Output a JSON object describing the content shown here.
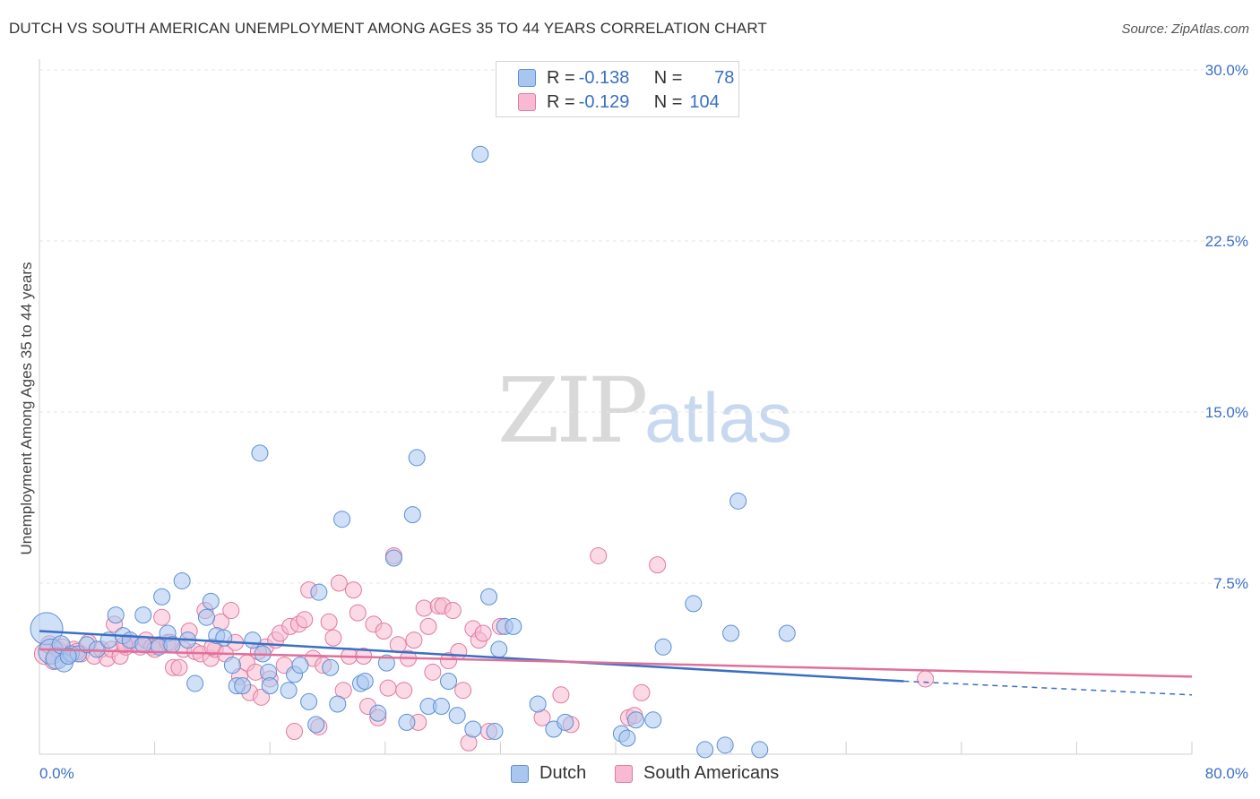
{
  "header": {
    "title": "DUTCH VS SOUTH AMERICAN UNEMPLOYMENT AMONG AGES 35 TO 44 YEARS CORRELATION CHART",
    "source": "Source: ZipAtlas.com"
  },
  "watermark": {
    "zip": "ZIP",
    "atlas": "atlas"
  },
  "legend": {
    "rows": [
      {
        "r_label": "R = ",
        "r_value": "-0.138",
        "n_label": "N = ",
        "n_value": "78",
        "color": "#a9c6ee",
        "stroke": "#5b8fd6"
      },
      {
        "r_label": "R = ",
        "r_value": "-0.129",
        "n_label": "N = ",
        "n_value": "104",
        "color": "#f7bad0",
        "stroke": "#e07aa0"
      }
    ]
  },
  "bottom_legend": {
    "dutch": "Dutch",
    "south_americans": "South Americans"
  },
  "chart_data": {
    "type": "scatter",
    "title": "DUTCH VS SOUTH AMERICAN UNEMPLOYMENT AMONG AGES 35 TO 44 YEARS CORRELATION CHART",
    "xlabel": "",
    "ylabel": "Unemployment Among Ages 35 to 44 years",
    "xlim": [
      0,
      80
    ],
    "ylim": [
      0,
      30
    ],
    "x_tick_labels": [
      "0.0%",
      "80.0%"
    ],
    "y_ticks": [
      7.5,
      15.0,
      22.5,
      30.0
    ],
    "y_tick_labels": [
      "7.5%",
      "15.0%",
      "22.5%",
      "30.0%"
    ],
    "grid": true,
    "legend_position": "top-center",
    "series": [
      {
        "name": "Dutch",
        "color": "#a9c6ee",
        "stroke": "#5b8fd6",
        "trend": {
          "x": [
            0,
            60
          ],
          "y": [
            5.4,
            3.2
          ],
          "dashed_to": [
            80,
            2.6
          ],
          "color": "#3a6fc4"
        },
        "points": [
          [
            0.5,
            5.5,
            18
          ],
          [
            0.8,
            4.5,
            14
          ],
          [
            1.2,
            4.2,
            12
          ],
          [
            1.5,
            4.8,
            10
          ],
          [
            1.7,
            4.0,
            10
          ],
          [
            2.2,
            4.4,
            9
          ],
          [
            2.7,
            4.4,
            9
          ],
          [
            3.3,
            4.8,
            9
          ],
          [
            4.0,
            4.6,
            9
          ],
          [
            4.8,
            5.0,
            9
          ],
          [
            5.3,
            6.1,
            9
          ],
          [
            5.8,
            5.2,
            9
          ],
          [
            6.3,
            5.0,
            9
          ],
          [
            7.2,
            4.8,
            9
          ],
          [
            7.2,
            6.1,
            9
          ],
          [
            8.3,
            4.7,
            9
          ],
          [
            8.5,
            6.9,
            9
          ],
          [
            8.9,
            5.3,
            9
          ],
          [
            9.2,
            4.8,
            9
          ],
          [
            9.9,
            7.6,
            9
          ],
          [
            10.3,
            5.0,
            9
          ],
          [
            10.8,
            3.1,
            9
          ],
          [
            11.6,
            6.0,
            9
          ],
          [
            11.9,
            6.7,
            9
          ],
          [
            12.3,
            5.2,
            9
          ],
          [
            12.8,
            5.1,
            9
          ],
          [
            13.4,
            3.9,
            9
          ],
          [
            13.7,
            3.0,
            9
          ],
          [
            14.1,
            3.0,
            9
          ],
          [
            14.8,
            5.0,
            9
          ],
          [
            15.3,
            13.2,
            9
          ],
          [
            15.5,
            4.4,
            9
          ],
          [
            15.9,
            3.6,
            9
          ],
          [
            16.0,
            3.0,
            9
          ],
          [
            17.3,
            2.8,
            9
          ],
          [
            17.7,
            3.5,
            9
          ],
          [
            18.1,
            3.9,
            9
          ],
          [
            18.7,
            2.3,
            9
          ],
          [
            19.2,
            1.3,
            9
          ],
          [
            19.4,
            7.1,
            9
          ],
          [
            20.2,
            3.8,
            9
          ],
          [
            20.7,
            2.2,
            9
          ],
          [
            21.0,
            10.3,
            9
          ],
          [
            22.3,
            3.1,
            9
          ],
          [
            22.6,
            3.2,
            9
          ],
          [
            23.5,
            1.8,
            9
          ],
          [
            24.1,
            4.0,
            9
          ],
          [
            24.6,
            8.6,
            9
          ],
          [
            25.5,
            1.4,
            9
          ],
          [
            25.9,
            10.5,
            9
          ],
          [
            26.2,
            13.0,
            9
          ],
          [
            27.0,
            2.1,
            9
          ],
          [
            27.9,
            2.1,
            9
          ],
          [
            28.4,
            3.2,
            9
          ],
          [
            29.0,
            1.7,
            9
          ],
          [
            30.1,
            1.1,
            9
          ],
          [
            30.6,
            26.3,
            9
          ],
          [
            31.2,
            6.9,
            9
          ],
          [
            31.6,
            1.0,
            9
          ],
          [
            31.9,
            4.6,
            9
          ],
          [
            32.3,
            5.6,
            9
          ],
          [
            32.9,
            5.6,
            9
          ],
          [
            34.6,
            2.2,
            9
          ],
          [
            35.7,
            1.1,
            9
          ],
          [
            36.5,
            1.4,
            9
          ],
          [
            40.4,
            0.9,
            9
          ],
          [
            40.8,
            0.7,
            9
          ],
          [
            41.4,
            1.5,
            9
          ],
          [
            42.6,
            1.5,
            9
          ],
          [
            43.3,
            4.7,
            9
          ],
          [
            45.4,
            6.6,
            9
          ],
          [
            46.2,
            0.2,
            9
          ],
          [
            47.6,
            0.4,
            9
          ],
          [
            48.0,
            5.3,
            9
          ],
          [
            48.5,
            11.1,
            9
          ],
          [
            50.0,
            0.2,
            9
          ],
          [
            51.9,
            5.3,
            9
          ],
          [
            2.0,
            4.3,
            9
          ]
        ]
      },
      {
        "name": "South Americans",
        "color": "#f7bad0",
        "stroke": "#e07aa0",
        "trend": {
          "x": [
            0,
            80
          ],
          "y": [
            4.6,
            3.4
          ],
          "color": "#e0709a"
        },
        "points": [
          [
            0.4,
            4.4,
            12
          ],
          [
            0.7,
            4.8,
            10
          ],
          [
            1.0,
            4.1,
            10
          ],
          [
            1.3,
            4.6,
            9
          ],
          [
            1.6,
            4.7,
            9
          ],
          [
            2.0,
            4.3,
            9
          ],
          [
            2.4,
            4.6,
            9
          ],
          [
            2.9,
            4.4,
            9
          ],
          [
            3.4,
            4.9,
            9
          ],
          [
            3.8,
            4.3,
            9
          ],
          [
            4.3,
            4.6,
            9
          ],
          [
            4.7,
            4.2,
            9
          ],
          [
            5.0,
            4.6,
            9
          ],
          [
            5.2,
            5.7,
            9
          ],
          [
            5.6,
            4.3,
            9
          ],
          [
            6.0,
            4.7,
            9
          ],
          [
            6.3,
            4.9,
            9
          ],
          [
            6.6,
            4.8,
            9
          ],
          [
            7.0,
            4.7,
            9
          ],
          [
            7.4,
            5.0,
            9
          ],
          [
            7.8,
            4.7,
            9
          ],
          [
            8.0,
            4.6,
            9
          ],
          [
            8.3,
            4.8,
            9
          ],
          [
            8.5,
            6.0,
            9
          ],
          [
            8.9,
            4.9,
            9
          ],
          [
            9.3,
            3.8,
            9
          ],
          [
            9.7,
            3.8,
            9
          ],
          [
            10.0,
            4.6,
            9
          ],
          [
            10.4,
            5.4,
            9
          ],
          [
            10.8,
            4.5,
            9
          ],
          [
            11.2,
            4.4,
            9
          ],
          [
            11.5,
            6.3,
            9
          ],
          [
            11.9,
            4.2,
            9
          ],
          [
            12.2,
            4.6,
            9
          ],
          [
            12.6,
            5.8,
            9
          ],
          [
            12.9,
            4.4,
            9
          ],
          [
            13.3,
            6.3,
            9
          ],
          [
            13.6,
            4.9,
            9
          ],
          [
            13.9,
            3.4,
            9
          ],
          [
            14.4,
            4.0,
            9
          ],
          [
            14.6,
            2.7,
            9
          ],
          [
            15.0,
            3.6,
            9
          ],
          [
            15.4,
            2.5,
            9
          ],
          [
            15.7,
            4.7,
            9
          ],
          [
            16.0,
            3.3,
            9
          ],
          [
            16.4,
            5.0,
            9
          ],
          [
            16.7,
            5.3,
            9
          ],
          [
            17.0,
            3.9,
            9
          ],
          [
            17.4,
            5.6,
            9
          ],
          [
            17.7,
            1.0,
            9
          ],
          [
            18.0,
            5.7,
            9
          ],
          [
            18.4,
            5.9,
            9
          ],
          [
            18.7,
            7.2,
            9
          ],
          [
            19.0,
            4.2,
            9
          ],
          [
            19.4,
            1.2,
            9
          ],
          [
            19.7,
            3.9,
            9
          ],
          [
            20.1,
            5.8,
            9
          ],
          [
            20.4,
            5.1,
            9
          ],
          [
            20.8,
            7.5,
            9
          ],
          [
            21.1,
            2.8,
            9
          ],
          [
            21.5,
            4.3,
            9
          ],
          [
            21.8,
            7.2,
            9
          ],
          [
            22.1,
            6.2,
            9
          ],
          [
            22.5,
            4.3,
            9
          ],
          [
            22.8,
            2.1,
            9
          ],
          [
            23.2,
            5.7,
            9
          ],
          [
            23.5,
            1.6,
            9
          ],
          [
            23.9,
            5.4,
            9
          ],
          [
            24.2,
            2.9,
            9
          ],
          [
            24.6,
            8.7,
            9
          ],
          [
            24.9,
            4.8,
            9
          ],
          [
            25.3,
            2.8,
            9
          ],
          [
            25.6,
            4.2,
            9
          ],
          [
            26.0,
            5.0,
            9
          ],
          [
            26.3,
            1.4,
            9
          ],
          [
            26.7,
            6.4,
            9
          ],
          [
            27.0,
            5.6,
            9
          ],
          [
            27.3,
            3.6,
            9
          ],
          [
            27.7,
            6.5,
            9
          ],
          [
            28.0,
            6.5,
            9
          ],
          [
            28.4,
            4.1,
            9
          ],
          [
            28.7,
            6.3,
            9
          ],
          [
            29.1,
            4.5,
            9
          ],
          [
            29.4,
            2.8,
            9
          ],
          [
            29.8,
            0.5,
            9
          ],
          [
            30.1,
            5.5,
            9
          ],
          [
            30.5,
            5.0,
            9
          ],
          [
            30.8,
            5.3,
            9
          ],
          [
            31.2,
            1.0,
            9
          ],
          [
            32.0,
            5.6,
            9
          ],
          [
            34.9,
            1.6,
            9
          ],
          [
            36.2,
            2.6,
            9
          ],
          [
            36.9,
            1.3,
            9
          ],
          [
            38.8,
            8.7,
            9
          ],
          [
            40.9,
            1.6,
            9
          ],
          [
            41.3,
            1.7,
            9
          ],
          [
            41.8,
            2.7,
            9
          ],
          [
            42.9,
            8.3,
            9
          ],
          [
            61.5,
            3.3,
            9
          ],
          [
            2.6,
            4.5,
            9
          ],
          [
            5.9,
            4.8,
            9
          ],
          [
            9.1,
            4.9,
            9
          ],
          [
            12.0,
            4.7,
            9
          ],
          [
            15.2,
            4.5,
            9
          ]
        ]
      }
    ]
  }
}
